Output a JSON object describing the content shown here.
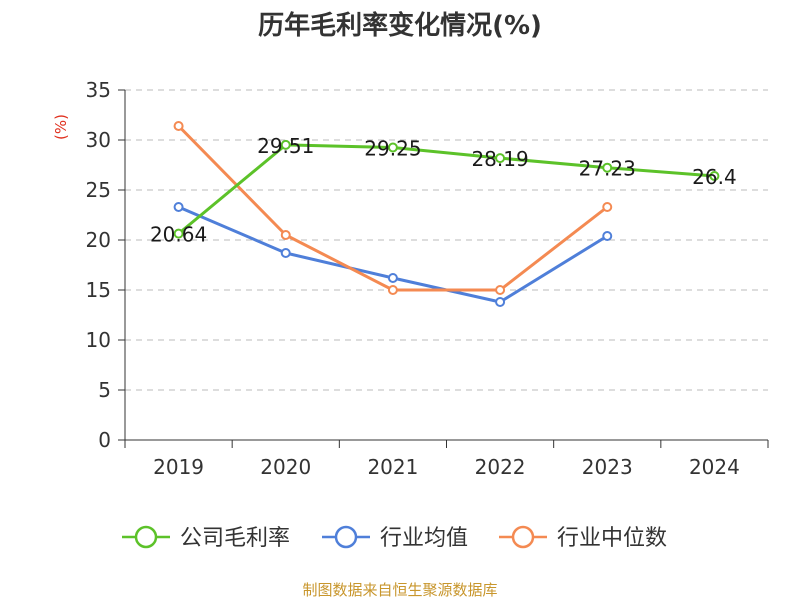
{
  "chart_data": {
    "type": "line",
    "title": "历年毛利率变化情况(%)",
    "ylabel": "(%)",
    "xlabel": "",
    "categories": [
      "2019",
      "2020",
      "2021",
      "2022",
      "2023",
      "2024"
    ],
    "ylim": [
      0,
      35
    ],
    "yticks": [
      0,
      5,
      10,
      15,
      20,
      25,
      30,
      35
    ],
    "grid": true,
    "legend_position": "bottom",
    "series": [
      {
        "name": "公司毛利率",
        "color": "#5cc229",
        "values": [
          20.64,
          29.51,
          29.25,
          28.19,
          27.23,
          26.4
        ],
        "labels": [
          "20.64",
          "29.51",
          "29.25",
          "28.19",
          "27.23",
          "26.4"
        ]
      },
      {
        "name": "行业均值",
        "color": "#4f7fd9",
        "values": [
          23.3,
          18.7,
          16.2,
          13.8,
          20.4,
          null
        ]
      },
      {
        "name": "行业中位数",
        "color": "#f48a52",
        "values": [
          31.4,
          20.5,
          15.0,
          15.0,
          23.3,
          null
        ]
      }
    ]
  },
  "footer": {
    "source": "制图数据来自恒生聚源数据库"
  }
}
